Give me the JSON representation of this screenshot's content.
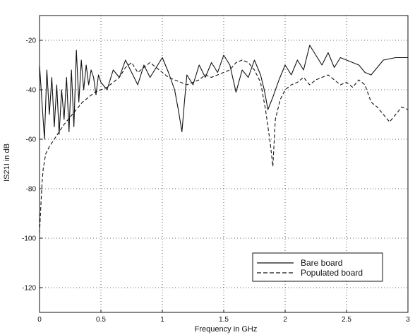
{
  "chart_data": {
    "type": "line",
    "title": "",
    "xlabel": "Frequency in GHz",
    "ylabel": "IS21I in dB",
    "xlim": [
      0,
      3
    ],
    "ylim": [
      -130,
      -10
    ],
    "xticks": [
      0,
      0.5,
      1,
      1.5,
      2,
      2.5,
      3
    ],
    "xtick_labels": [
      "0",
      "0.5",
      "1",
      "1.5",
      "2",
      "2.5",
      "3"
    ],
    "yticks": [
      -120,
      -100,
      -80,
      -60,
      -40,
      -20
    ],
    "ytick_labels": [
      "-120",
      "-100",
      "-80",
      "-60",
      "-40",
      "-20"
    ],
    "grid": true,
    "legend_position": "bottom-right",
    "series": [
      {
        "name": "Bare board",
        "style": "solid",
        "color": "#111111",
        "x": [
          0,
          0.02,
          0.04,
          0.06,
          0.08,
          0.1,
          0.12,
          0.14,
          0.16,
          0.18,
          0.2,
          0.22,
          0.24,
          0.26,
          0.28,
          0.3,
          0.32,
          0.34,
          0.36,
          0.38,
          0.4,
          0.42,
          0.44,
          0.46,
          0.48,
          0.5,
          0.55,
          0.6,
          0.65,
          0.7,
          0.75,
          0.8,
          0.85,
          0.9,
          0.95,
          1.0,
          1.05,
          1.1,
          1.13,
          1.16,
          1.18,
          1.2,
          1.25,
          1.3,
          1.35,
          1.4,
          1.45,
          1.5,
          1.55,
          1.6,
          1.65,
          1.7,
          1.75,
          1.8,
          1.83,
          1.86,
          1.9,
          1.95,
          2.0,
          2.05,
          2.1,
          2.15,
          2.2,
          2.25,
          2.3,
          2.35,
          2.4,
          2.45,
          2.5,
          2.55,
          2.6,
          2.65,
          2.7,
          2.8,
          2.9,
          3.0
        ],
        "y": [
          -30,
          -45,
          -60,
          -32,
          -50,
          -35,
          -55,
          -38,
          -58,
          -40,
          -52,
          -35,
          -57,
          -32,
          -55,
          -24,
          -45,
          -28,
          -40,
          -30,
          -38,
          -32,
          -35,
          -42,
          -34,
          -37,
          -40,
          -32,
          -35,
          -28,
          -33,
          -38,
          -30,
          -35,
          -31,
          -27,
          -33,
          -40,
          -48,
          -57,
          -45,
          -34,
          -38,
          -30,
          -35,
          -29,
          -33,
          -26,
          -30,
          -41,
          -32,
          -35,
          -28,
          -34,
          -40,
          -48,
          -43,
          -36,
          -30,
          -34,
          -28,
          -32,
          -22,
          -26,
          -30,
          -25,
          -31,
          -27,
          -28,
          -29,
          -30,
          -33,
          -34,
          -28,
          -27,
          -27
        ]
      },
      {
        "name": "Populated board",
        "style": "dashed",
        "color": "#111111",
        "x": [
          0,
          0.01,
          0.02,
          0.03,
          0.05,
          0.08,
          0.12,
          0.16,
          0.2,
          0.25,
          0.3,
          0.35,
          0.4,
          0.45,
          0.5,
          0.55,
          0.6,
          0.65,
          0.7,
          0.75,
          0.8,
          0.85,
          0.9,
          0.95,
          1.0,
          1.05,
          1.1,
          1.15,
          1.2,
          1.25,
          1.3,
          1.35,
          1.4,
          1.45,
          1.5,
          1.55,
          1.6,
          1.65,
          1.7,
          1.75,
          1.8,
          1.84,
          1.88,
          1.9,
          1.92,
          1.96,
          2.0,
          2.05,
          2.1,
          2.15,
          2.2,
          2.25,
          2.3,
          2.35,
          2.4,
          2.45,
          2.5,
          2.55,
          2.6,
          2.65,
          2.7,
          2.75,
          2.8,
          2.85,
          2.9,
          2.95,
          3.0
        ],
        "y": [
          -98,
          -88,
          -78,
          -72,
          -66,
          -63,
          -60,
          -57,
          -54,
          -51,
          -48,
          -45,
          -43,
          -41,
          -40,
          -39,
          -37,
          -35,
          -31,
          -29,
          -33,
          -31,
          -29,
          -31,
          -33,
          -35,
          -36,
          -37,
          -38,
          -37,
          -36,
          -34,
          -35,
          -34,
          -33,
          -32,
          -29,
          -28,
          -29,
          -32,
          -37,
          -48,
          -62,
          -71,
          -52,
          -44,
          -40,
          -38,
          -37,
          -35,
          -38,
          -36,
          -35,
          -34,
          -36,
          -38,
          -37,
          -39,
          -36,
          -38,
          -45,
          -47,
          -50,
          -53,
          -50,
          -47,
          -48
        ]
      }
    ]
  }
}
